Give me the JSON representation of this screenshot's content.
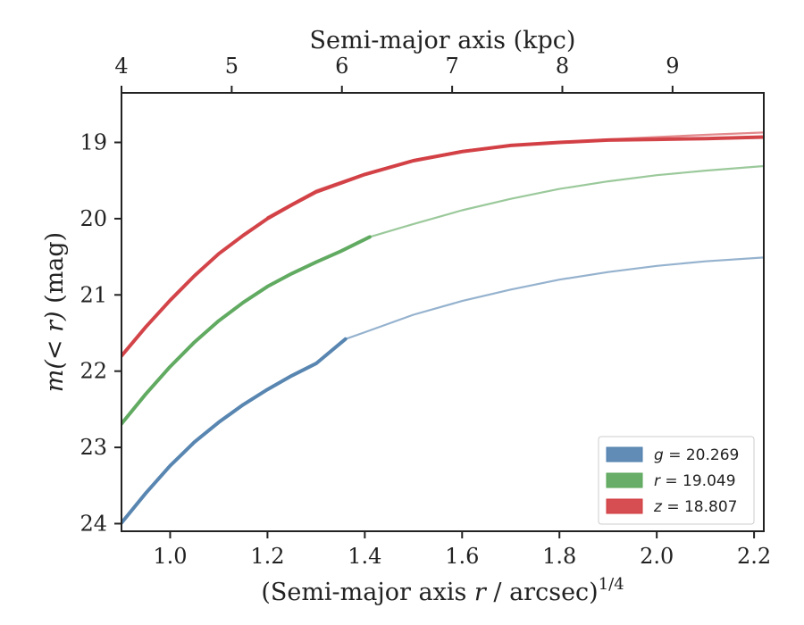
{
  "chart_data": {
    "type": "line",
    "title": "",
    "xlabel": "(Semi-major axis r / arcsec)^1/4",
    "xlabel_parts": {
      "prefix": "(Semi-major axis ",
      "var": "r",
      "suffix": " / arcsec)",
      "exponent": "1/4"
    },
    "ylabel": "m(< r) (mag)",
    "ylabel_parts": {
      "prefix": "m(< r)",
      "suffix": " (mag)"
    },
    "top_xlabel": "Semi-major axis (kpc)",
    "xlim": [
      0.9,
      2.22
    ],
    "ylim": [
      24.1,
      18.35
    ],
    "y_inverted": true,
    "x_ticks": [
      "1.0",
      "1.2",
      "1.4",
      "1.6",
      "1.8",
      "2.0",
      "2.2"
    ],
    "y_ticks": [
      "19",
      "20",
      "21",
      "22",
      "23",
      "24"
    ],
    "top_x_ticks": [
      "4",
      "5",
      "6",
      "7",
      "8",
      "9"
    ],
    "grid": false,
    "legend_position": "lower-right",
    "series": [
      {
        "name": "g = 20.269",
        "legend_var": "g",
        "legend_value": "20.269",
        "color": "#4f7fad",
        "measured_x": [
          0.9,
          0.95,
          1.0,
          1.05,
          1.1,
          1.15,
          1.2,
          1.25,
          1.3,
          1.36
        ],
        "measured_y": [
          23.99,
          23.6,
          23.24,
          22.93,
          22.67,
          22.44,
          22.24,
          22.06,
          21.9,
          21.58
        ],
        "model_x": [
          1.36,
          1.4,
          1.5,
          1.6,
          1.7,
          1.8,
          1.9,
          2.0,
          2.1,
          2.22
        ],
        "model_y": [
          21.58,
          21.49,
          21.26,
          21.08,
          20.93,
          20.8,
          20.7,
          20.62,
          20.56,
          20.51
        ]
      },
      {
        "name": "r = 19.049",
        "legend_var": "r",
        "legend_value": "19.049",
        "color": "#58a558",
        "measured_x": [
          0.9,
          0.95,
          1.0,
          1.05,
          1.1,
          1.15,
          1.2,
          1.25,
          1.3,
          1.35,
          1.41
        ],
        "measured_y": [
          22.69,
          22.3,
          21.94,
          21.62,
          21.34,
          21.1,
          20.89,
          20.72,
          20.57,
          20.43,
          20.24
        ],
        "model_x": [
          1.41,
          1.5,
          1.6,
          1.7,
          1.8,
          1.9,
          2.0,
          2.1,
          2.22
        ],
        "model_y": [
          20.24,
          20.07,
          19.89,
          19.74,
          19.61,
          19.51,
          19.43,
          19.37,
          19.31
        ]
      },
      {
        "name": "z = 18.807",
        "legend_var": "z",
        "legend_value": "18.807",
        "color": "#d13a3f",
        "measured_x": [
          0.9,
          0.95,
          1.0,
          1.05,
          1.1,
          1.15,
          1.2,
          1.25,
          1.3,
          1.4,
          1.5,
          1.6,
          1.7,
          1.8,
          1.9,
          2.0,
          2.1,
          2.22
        ],
        "measured_y": [
          21.8,
          21.42,
          21.07,
          20.75,
          20.46,
          20.22,
          20.0,
          19.82,
          19.65,
          19.42,
          19.24,
          19.12,
          19.04,
          19.0,
          18.97,
          18.96,
          18.95,
          18.93
        ],
        "model_x": [
          1.2,
          1.3,
          1.4,
          1.5,
          1.6,
          1.7,
          1.8,
          1.9,
          2.0,
          2.1,
          2.22
        ],
        "model_y": [
          19.98,
          19.63,
          19.41,
          19.23,
          19.11,
          19.04,
          19.0,
          18.96,
          18.93,
          18.9,
          18.87
        ]
      }
    ]
  }
}
